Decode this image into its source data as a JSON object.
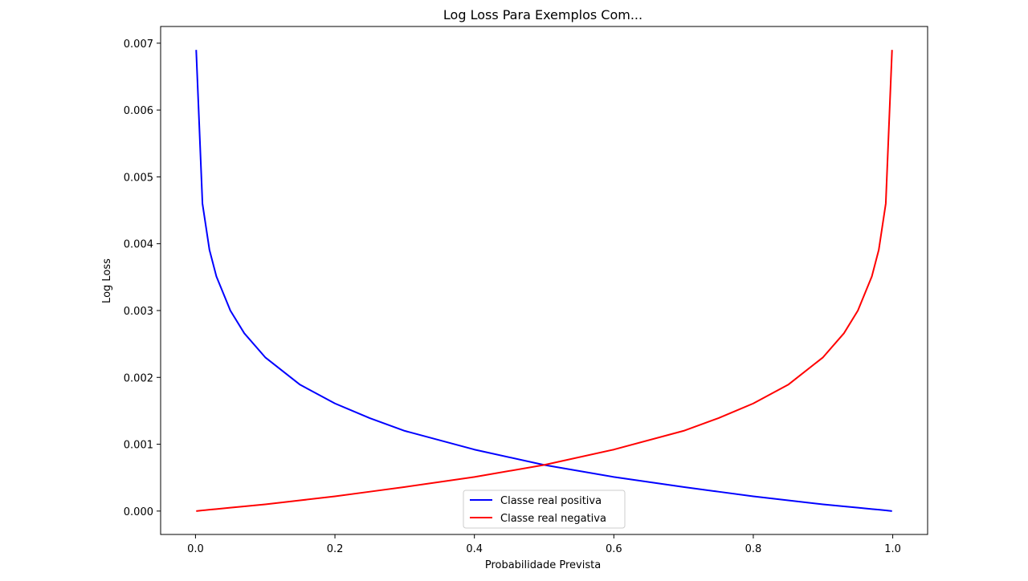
{
  "chart_data": {
    "type": "line",
    "title": "Log Loss Para Exemplos Com...",
    "xlabel": "Probabilidade Prevista",
    "ylabel": "Log Loss",
    "xlim": [
      -0.05,
      1.05
    ],
    "ylim": [
      -0.00035,
      0.00725
    ],
    "x_ticks": [
      0.0,
      0.2,
      0.4,
      0.6,
      0.8,
      1.0
    ],
    "x_tick_labels": [
      "0.0",
      "0.2",
      "0.4",
      "0.6",
      "0.8",
      "1.0"
    ],
    "y_ticks": [
      0.0,
      0.001,
      0.002,
      0.003,
      0.004,
      0.005,
      0.006,
      0.007
    ],
    "y_tick_labels": [
      "0.000",
      "0.001",
      "0.002",
      "0.003",
      "0.004",
      "0.005",
      "0.006",
      "0.007"
    ],
    "grid": false,
    "legend_position": "lower-center",
    "x": [
      0.001,
      0.01,
      0.02,
      0.03,
      0.05,
      0.07,
      0.1,
      0.15,
      0.2,
      0.25,
      0.3,
      0.4,
      0.5,
      0.6,
      0.7,
      0.75,
      0.8,
      0.85,
      0.9,
      0.93,
      0.95,
      0.97,
      0.98,
      0.99,
      0.999
    ],
    "series": [
      {
        "name": "Classe real positiva",
        "color": "#0000ff",
        "values": [
          0.0069,
          0.0046,
          0.00391,
          0.00351,
          0.003,
          0.00266,
          0.0023,
          0.00189,
          0.00161,
          0.00139,
          0.0012,
          0.00092,
          0.00069,
          0.00051,
          0.00036,
          0.00029,
          0.00022,
          0.00016,
          0.0001,
          7e-05,
          5e-05,
          3e-05,
          2e-05,
          1e-05,
          0.0
        ]
      },
      {
        "name": "Classe real negativa",
        "color": "#ff0000",
        "values": [
          0.0,
          1e-05,
          2e-05,
          3e-05,
          5e-05,
          7e-05,
          0.0001,
          0.00016,
          0.00022,
          0.00029,
          0.00036,
          0.00051,
          0.00069,
          0.00092,
          0.0012,
          0.00139,
          0.00161,
          0.00189,
          0.0023,
          0.00266,
          0.003,
          0.00351,
          0.00391,
          0.0046,
          0.0069
        ]
      }
    ]
  }
}
